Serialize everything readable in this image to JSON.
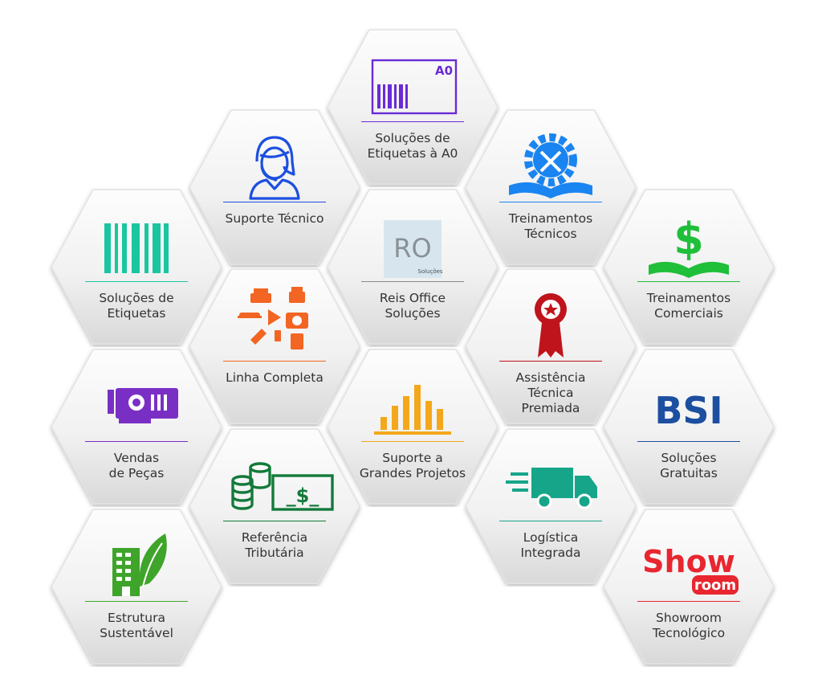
{
  "tiles": {
    "solucoes_a0": {
      "title": "Soluções de\nEtiquetas à A0",
      "icon": "barcode-a0-icon",
      "icon_text": "A0",
      "color": "#6a2bd6"
    },
    "suporte_tecnico": {
      "title": "Suporte Técnico",
      "icon": "headset-person-icon",
      "color": "#1d4fe0"
    },
    "treinamentos_tecnicos": {
      "title": "Treinamentos\nTécnicos",
      "icon": "gear-book-tools-icon",
      "color": "#1a84f0"
    },
    "solucoes_etiquetas": {
      "title": "Soluções de\nEtiquetas",
      "icon": "barcode-icon",
      "color": "#19c6a0"
    },
    "reis_office": {
      "title": "Reis Office\nSoluções",
      "icon": "ro-logo-icon",
      "logo_text": "RO",
      "logo_sub": "Soluções",
      "color": "#888888"
    },
    "treinamentos_comerciais": {
      "title": "Treinamentos\nComerciais",
      "icon": "dollar-book-icon",
      "color": "#1fbf3a"
    },
    "linha_completa": {
      "title": "Linha Completa",
      "icon": "office-equipment-icon",
      "color": "#f26522"
    },
    "assistencia": {
      "title": "Assistência\nTécnica\nPremiada",
      "icon": "award-ribbon-icon",
      "color": "#c0141c"
    },
    "vendas_pecas": {
      "title": "Vendas\nde Peças",
      "icon": "graphics-card-icon",
      "color": "#7a2fc4"
    },
    "suporte_projetos": {
      "title": "Suporte a\nGrandes Projetos",
      "icon": "bar-chart-icon",
      "color": "#f3a81b"
    },
    "bsi": {
      "title": "Soluções\nGratuitas",
      "icon": "bsi-logo-icon",
      "logo_text": "BSI",
      "color": "#1d4fa0"
    },
    "referencia": {
      "title": "Referência\nTributária",
      "icon": "money-coins-icon",
      "color": "#127a3a"
    },
    "logistica": {
      "title": "Logística\nIntegrada",
      "icon": "delivery-truck-icon",
      "color": "#17a58a"
    },
    "estrutura": {
      "title": "Estrutura\nSustentável",
      "icon": "green-building-icon",
      "color": "#3fa42a"
    },
    "showroom": {
      "title": "Showroom\nTecnológico",
      "icon": "showroom-logo-icon",
      "logo_text": "Show",
      "logo_sub": "room",
      "color": "#e8262f"
    }
  }
}
